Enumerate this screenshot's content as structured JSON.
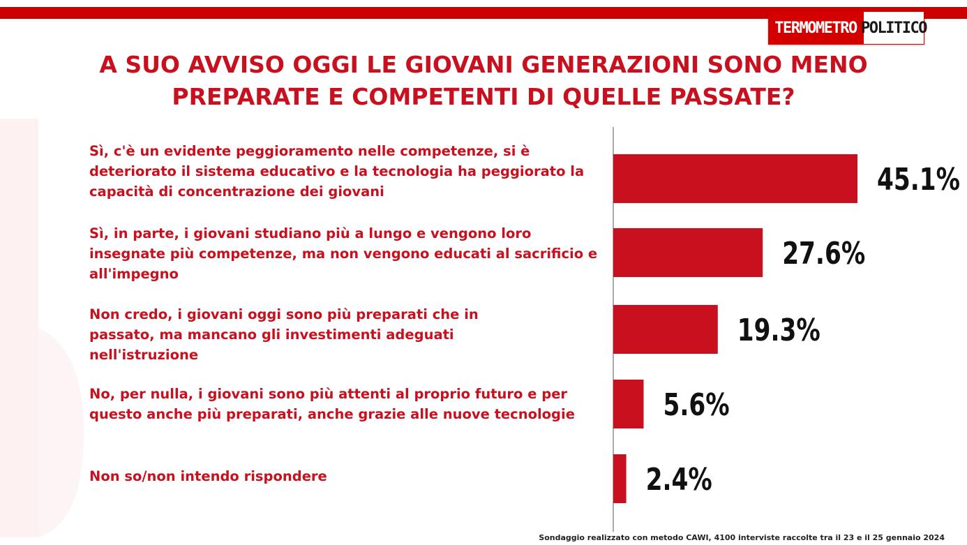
{
  "header": {
    "logo_left": "TERMOMETRO",
    "logo_right": "POLITICO"
  },
  "chart_data": {
    "type": "bar",
    "orientation": "horizontal",
    "title": "A SUO AVVISO OGGI LE GIOVANI GENERAZIONI SONO MENO PREPARATE E COMPETENTI DI QUELLE PASSATE?",
    "categories": [
      "Sì, c'è un evidente peggioramento nelle competenze, si è deteriorato il sistema educativo e la tecnologia ha peggiorato la capacità  di concentrazione dei giovani",
      "Sì, in parte, i giovani studiano più a lungo e vengono loro insegnate più competenze, ma non vengono educati al sacrificio e all'impegno",
      "Non credo, i giovani oggi sono più preparati che in passato, ma mancano gli investimenti adeguati nell'istruzione",
      "No, per nulla, i giovani sono più attenti al proprio futuro e per questo anche più preparati, anche grazie alle nuove tecnologie",
      "Non so/non intendo rispondere"
    ],
    "values": [
      45.1,
      27.6,
      19.3,
      5.6,
      2.4
    ],
    "value_labels": [
      "45.1%",
      "27.6%",
      "19.3%",
      "5.6%",
      "2.4%"
    ],
    "xlim": [
      0,
      100
    ],
    "bar_color": "#c8101e",
    "grid": false,
    "legend": "none"
  },
  "footer": {
    "note": "Sondaggio realizzato con metodo CAWI, 4100 interviste raccolte tra il 23 e il 25 gennaio 2024"
  },
  "colors": {
    "accent": "#c8101e",
    "top_bar": "#cc0000",
    "text_dark": "#111111"
  }
}
